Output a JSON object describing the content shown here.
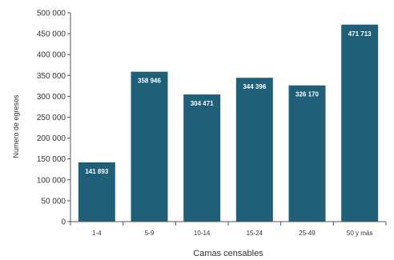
{
  "chart_data": {
    "type": "bar",
    "title": "",
    "xlabel": "Camas censables",
    "ylabel": "Número de egresos",
    "categories": [
      "1-4",
      "5-9",
      "10-14",
      "15-24",
      "25-49",
      "50 y más"
    ],
    "values": [
      141893,
      358946,
      304471,
      344396,
      326170,
      471713
    ],
    "value_labels": [
      "141 893",
      "358 946",
      "304 471",
      "344 396",
      "326 170",
      "471 713"
    ],
    "ylim": [
      0,
      500000
    ],
    "yticks": [
      0,
      50000,
      100000,
      150000,
      200000,
      250000,
      300000,
      350000,
      400000,
      450000,
      500000
    ],
    "ytick_labels": [
      "0",
      "50 000",
      "100 000",
      "150 000",
      "200 000",
      "250 000",
      "300 000",
      "350 000",
      "400 000",
      "450 000",
      "500 000"
    ],
    "grid": false,
    "legend": "none",
    "bar_color": "#1f5f78"
  }
}
